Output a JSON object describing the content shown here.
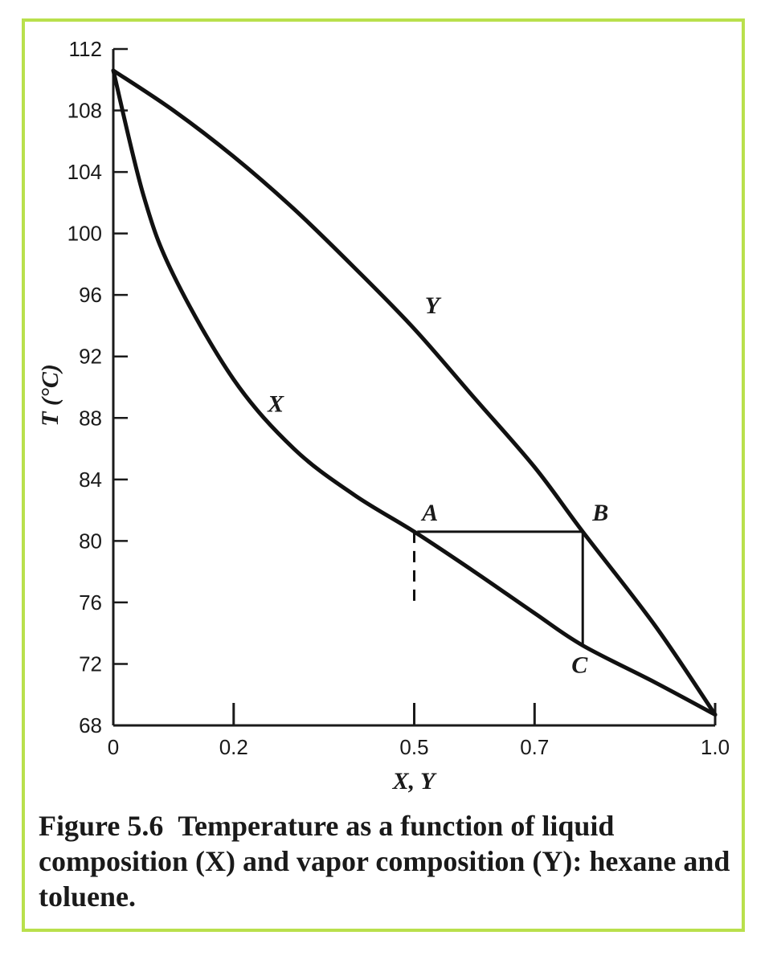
{
  "chart_data": {
    "type": "line",
    "title": "",
    "xlabel": "X, Y",
    "ylabel": "T (°C)",
    "xlim": [
      0,
      1.0
    ],
    "ylim": [
      68,
      112
    ],
    "x_ticks": [
      0,
      0.2,
      0.5,
      0.7,
      1.0
    ],
    "x_tick_labels": [
      "0",
      "0.2",
      "0.5",
      "0.7",
      "1.0"
    ],
    "y_ticks": [
      68,
      72,
      76,
      80,
      84,
      88,
      92,
      96,
      100,
      104,
      108,
      112
    ],
    "y_tick_labels": [
      "68",
      "72",
      "76",
      "80",
      "84",
      "88",
      "92",
      "96",
      "100",
      "104",
      "108",
      "112"
    ],
    "grid": false,
    "series": [
      {
        "name": "X",
        "x": [
          0,
          0.05,
          0.1,
          0.2,
          0.3,
          0.4,
          0.5,
          0.6,
          0.7,
          0.78,
          0.9,
          1.0
        ],
        "y": [
          110.6,
          102.5,
          97.3,
          90.5,
          86.0,
          83.0,
          80.6,
          78.0,
          75.3,
          73.2,
          70.8,
          68.7
        ]
      },
      {
        "name": "Y",
        "x": [
          0,
          0.1,
          0.2,
          0.3,
          0.4,
          0.5,
          0.6,
          0.7,
          0.78,
          0.9,
          1.0
        ],
        "y": [
          110.6,
          108.0,
          105.0,
          101.6,
          97.8,
          93.8,
          89.3,
          84.8,
          80.6,
          74.5,
          68.7
        ]
      }
    ],
    "annotations": [
      {
        "label": "A",
        "x": 0.505,
        "y": 80.6
      },
      {
        "label": "B",
        "x": 0.78,
        "y": 80.6
      },
      {
        "label": "C",
        "x": 0.78,
        "y": 73.2
      }
    ],
    "tie_lines": [
      {
        "from": "A",
        "to": "B"
      },
      {
        "from": "B",
        "to": "C"
      }
    ],
    "dashed_drop": {
      "x": 0.5,
      "y_from": 80.6,
      "y_to": 76
    }
  },
  "caption": {
    "number": "Figure 5.6",
    "text": "Temperature as a function of liquid composition (X) and vapor composition (Y): hexane and toluene."
  }
}
